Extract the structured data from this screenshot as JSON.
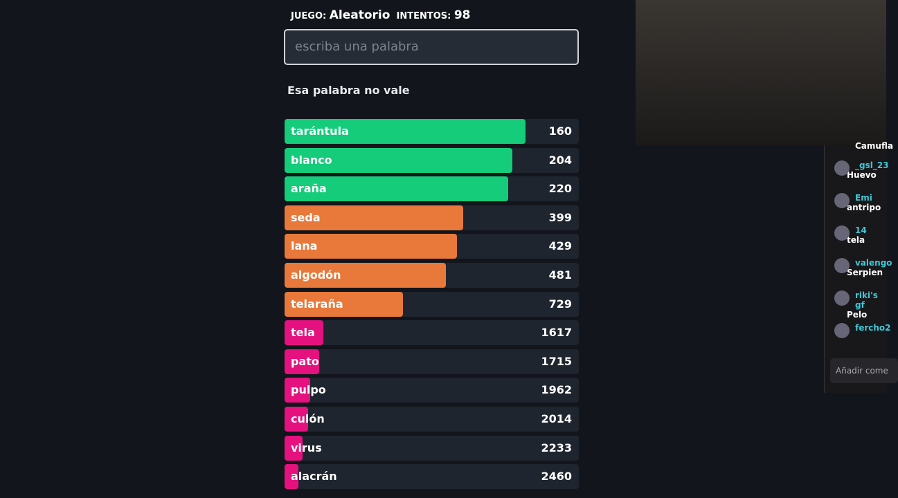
{
  "header": {
    "game_label": "JUEGO:",
    "game": "Aleatorio",
    "attempts_label": "INTENTOS:",
    "attempts": 98
  },
  "input": {
    "placeholder": "escriba una palabra"
  },
  "message": "Esa palabra no vale",
  "guesses": [
    {
      "word": "tarántula",
      "rank": 160,
      "color": "#14cc7a"
    },
    {
      "word": "blanco",
      "rank": 204,
      "color": "#14cc7a"
    },
    {
      "word": "araña",
      "rank": 220,
      "color": "#14cc7a"
    },
    {
      "word": "seda",
      "rank": 399,
      "color": "#e8793a"
    },
    {
      "word": "lana",
      "rank": 429,
      "color": "#e8793a"
    },
    {
      "word": "algodón",
      "rank": 481,
      "color": "#e8793a"
    },
    {
      "word": "telaraña",
      "rank": 729,
      "color": "#e8793a"
    },
    {
      "word": "tela",
      "rank": 1617,
      "color": "#e5117f"
    },
    {
      "word": "pato",
      "rank": 1715,
      "color": "#e5117f"
    },
    {
      "word": "pulpo",
      "rank": 1962,
      "color": "#e5117f"
    },
    {
      "word": "culón",
      "rank": 2014,
      "color": "#e5117f"
    },
    {
      "word": "virus",
      "rank": 2233,
      "color": "#e5117f"
    },
    {
      "word": "alacrán",
      "rank": 2460,
      "color": "#e5117f"
    }
  ],
  "chat": [
    {
      "user": "",
      "text": "Camufla"
    },
    {
      "user": "_gsl_23",
      "text": "Huevo"
    },
    {
      "user": "Emi",
      "text": "antripo"
    },
    {
      "user": "14",
      "text": "tela"
    },
    {
      "user": "valengo",
      "text": "Serpien"
    },
    {
      "user": "riki's gf",
      "text": "Pelo"
    },
    {
      "user": "fercho2",
      "text": ""
    }
  ],
  "chat_input": "Añadir come"
}
